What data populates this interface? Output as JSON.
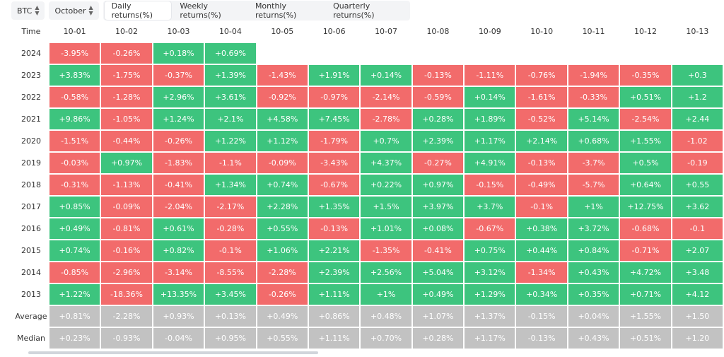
{
  "controls": {
    "coin": "BTC",
    "month": "October",
    "tabs": [
      "Daily returns(%)",
      "Weekly returns(%)",
      "Monthly returns(%)",
      "Quarterly returns(%)"
    ],
    "active_tab": 0
  },
  "table": {
    "header_first": "Time",
    "columns": [
      "10-01",
      "10-02",
      "10-03",
      "10-04",
      "10-05",
      "10-06",
      "10-07",
      "10-08",
      "10-09",
      "10-10",
      "10-11",
      "10-12",
      "10-13"
    ],
    "rows": [
      {
        "label": "2024",
        "values": [
          "-3.95%",
          "-0.26%",
          "+0.18%",
          "+0.69%",
          "",
          "",
          "",
          "",
          "",
          "",
          "",
          "",
          ""
        ]
      },
      {
        "label": "2023",
        "values": [
          "+3.83%",
          "-1.75%",
          "-0.37%",
          "+1.39%",
          "-1.43%",
          "+1.91%",
          "+0.14%",
          "-0.13%",
          "-1.11%",
          "-0.76%",
          "-1.94%",
          "-0.35%",
          "+0.3"
        ]
      },
      {
        "label": "2022",
        "values": [
          "-0.58%",
          "-1.28%",
          "+2.96%",
          "+3.61%",
          "-0.92%",
          "-0.97%",
          "-2.14%",
          "-0.59%",
          "+0.14%",
          "-1.61%",
          "-0.33%",
          "+0.51%",
          "+1.2"
        ]
      },
      {
        "label": "2021",
        "values": [
          "+9.86%",
          "-1.05%",
          "+1.24%",
          "+2.1%",
          "+4.58%",
          "+7.45%",
          "-2.78%",
          "+0.28%",
          "+1.89%",
          "-0.52%",
          "+5.14%",
          "-2.54%",
          "+2.44"
        ]
      },
      {
        "label": "2020",
        "values": [
          "-1.51%",
          "-0.44%",
          "-0.26%",
          "+1.22%",
          "+1.12%",
          "-1.79%",
          "+0.7%",
          "+2.39%",
          "+1.17%",
          "+2.14%",
          "+0.68%",
          "+1.55%",
          "-1.02"
        ]
      },
      {
        "label": "2019",
        "values": [
          "-0.03%",
          "+0.97%",
          "-1.83%",
          "-1.1%",
          "-0.09%",
          "-3.43%",
          "+4.37%",
          "-0.27%",
          "+4.91%",
          "-0.13%",
          "-3.7%",
          "+0.5%",
          "-0.19"
        ]
      },
      {
        "label": "2018",
        "values": [
          "-0.31%",
          "-1.13%",
          "-0.41%",
          "+1.34%",
          "+0.74%",
          "-0.67%",
          "+0.22%",
          "+0.97%",
          "-0.15%",
          "-0.49%",
          "-5.7%",
          "+0.64%",
          "+0.55"
        ]
      },
      {
        "label": "2017",
        "values": [
          "+0.85%",
          "-0.09%",
          "-2.04%",
          "-2.17%",
          "+2.28%",
          "+1.35%",
          "+1.5%",
          "+3.97%",
          "+3.7%",
          "-0.1%",
          "+1%",
          "+12.75%",
          "+3.62"
        ]
      },
      {
        "label": "2016",
        "values": [
          "+0.49%",
          "-0.81%",
          "+0.61%",
          "-0.28%",
          "+0.55%",
          "-0.13%",
          "+1.01%",
          "+0.08%",
          "-0.67%",
          "+0.38%",
          "+3.72%",
          "-0.68%",
          "-0.1"
        ]
      },
      {
        "label": "2015",
        "values": [
          "+0.74%",
          "-0.16%",
          "+0.82%",
          "-0.1%",
          "+1.06%",
          "+2.21%",
          "-1.35%",
          "-0.41%",
          "+0.75%",
          "+0.44%",
          "+0.84%",
          "-0.71%",
          "+2.07"
        ]
      },
      {
        "label": "2014",
        "values": [
          "-0.85%",
          "-2.96%",
          "-3.14%",
          "-8.55%",
          "-2.28%",
          "+2.39%",
          "+2.56%",
          "+5.04%",
          "+3.12%",
          "-1.34%",
          "+0.43%",
          "+4.72%",
          "+3.48"
        ]
      },
      {
        "label": "2013",
        "values": [
          "+1.22%",
          "-18.36%",
          "+13.35%",
          "+3.45%",
          "-0.26%",
          "+1.11%",
          "+1%",
          "+0.49%",
          "+1.29%",
          "+0.34%",
          "+0.35%",
          "+0.71%",
          "+4.12"
        ]
      }
    ],
    "summary": [
      {
        "label": "Average",
        "values": [
          "+0.81%",
          "-2.28%",
          "+0.93%",
          "+0.13%",
          "+0.49%",
          "+0.86%",
          "+0.48%",
          "+1.07%",
          "+1.37%",
          "-0.15%",
          "+0.04%",
          "+1.55%",
          "+1.50"
        ]
      },
      {
        "label": "Median",
        "values": [
          "+0.23%",
          "-0.93%",
          "-0.04%",
          "+0.95%",
          "+0.55%",
          "+1.11%",
          "+0.70%",
          "+0.28%",
          "+1.17%",
          "-0.13%",
          "+0.43%",
          "+0.51%",
          "+1.20"
        ]
      }
    ]
  },
  "colors": {
    "positive": "#3dc47e",
    "negative": "#f26b6b",
    "summary": "#c2c2c2"
  }
}
